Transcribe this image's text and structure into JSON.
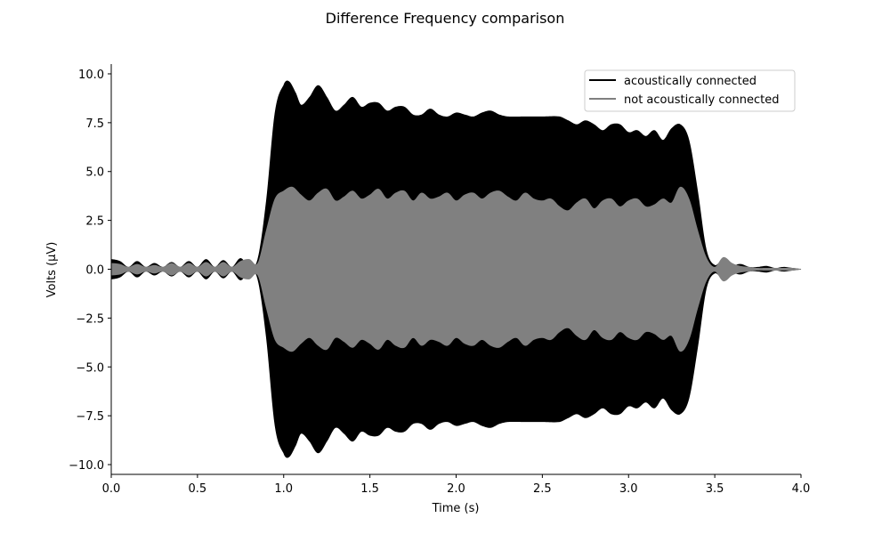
{
  "chart_data": {
    "type": "area",
    "title": "Difference Frequency comparison",
    "xlabel": "Time (s)",
    "ylabel": "Volts (μV)",
    "xlim": [
      0.0,
      4.0
    ],
    "ylim": [
      -10.5,
      10.5
    ],
    "xticks": [
      "0.0",
      "0.5",
      "1.0",
      "1.5",
      "2.0",
      "2.5",
      "3.0",
      "3.5",
      "4.0"
    ],
    "yticks": [
      "10.0",
      "7.5",
      "5.0",
      "2.5",
      "0.0",
      "−2.5",
      "−5.0",
      "−7.5",
      "−10.0"
    ],
    "ytick_values": [
      10.0,
      7.5,
      5.0,
      2.5,
      0.0,
      -2.5,
      -5.0,
      -7.5,
      -10.0
    ],
    "xtick_values": [
      0.0,
      0.5,
      1.0,
      1.5,
      2.0,
      2.5,
      3.0,
      3.5,
      4.0
    ],
    "grid": false,
    "legend_position": "top-right",
    "series": [
      {
        "name": "acoustically connected",
        "color": "#000000",
        "description_of_shape": "symmetric oscillation envelope",
        "x": [
          0.0,
          0.05,
          0.1,
          0.15,
          0.2,
          0.25,
          0.3,
          0.35,
          0.4,
          0.45,
          0.5,
          0.55,
          0.6,
          0.65,
          0.7,
          0.75,
          0.8,
          0.85,
          0.9,
          0.95,
          1.0,
          1.03,
          1.07,
          1.1,
          1.15,
          1.2,
          1.25,
          1.3,
          1.35,
          1.4,
          1.45,
          1.5,
          1.55,
          1.6,
          1.65,
          1.7,
          1.75,
          1.8,
          1.85,
          1.9,
          1.95,
          2.0,
          2.05,
          2.1,
          2.15,
          2.2,
          2.25,
          2.3,
          2.4,
          2.5,
          2.6,
          2.65,
          2.7,
          2.75,
          2.8,
          2.85,
          2.9,
          2.95,
          3.0,
          3.05,
          3.1,
          3.15,
          3.2,
          3.25,
          3.3,
          3.35,
          3.4,
          3.45,
          3.5,
          3.55,
          3.6,
          3.65,
          3.7,
          3.75,
          3.8,
          3.85,
          3.9,
          3.95,
          4.0
        ],
        "envelope": [
          0.5,
          0.4,
          0.1,
          0.4,
          0.1,
          0.3,
          0.1,
          0.35,
          0.1,
          0.4,
          0.1,
          0.5,
          0.1,
          0.45,
          0.1,
          0.55,
          0.1,
          0.5,
          3.5,
          8.0,
          9.4,
          9.6,
          9.0,
          8.4,
          8.8,
          9.4,
          8.8,
          8.1,
          8.4,
          8.8,
          8.3,
          8.5,
          8.5,
          8.1,
          8.3,
          8.3,
          7.9,
          7.9,
          8.2,
          7.9,
          7.8,
          8.0,
          7.9,
          7.8,
          8.0,
          8.1,
          7.9,
          7.8,
          7.8,
          7.8,
          7.8,
          7.6,
          7.4,
          7.6,
          7.4,
          7.1,
          7.4,
          7.4,
          7.0,
          7.1,
          6.8,
          7.1,
          6.6,
          7.2,
          7.4,
          6.6,
          4.0,
          1.0,
          0.2,
          0.5,
          0.2,
          0.25,
          0.1,
          0.1,
          0.15,
          0.05,
          0.1,
          0.05,
          0.0
        ]
      },
      {
        "name": "not acoustically connected",
        "color": "#808080",
        "description_of_shape": "symmetric oscillation envelope",
        "x": [
          0.0,
          0.05,
          0.1,
          0.15,
          0.2,
          0.25,
          0.3,
          0.35,
          0.4,
          0.45,
          0.5,
          0.55,
          0.6,
          0.65,
          0.7,
          0.75,
          0.8,
          0.85,
          0.9,
          0.95,
          1.0,
          1.05,
          1.1,
          1.15,
          1.2,
          1.25,
          1.3,
          1.35,
          1.4,
          1.45,
          1.5,
          1.55,
          1.6,
          1.65,
          1.7,
          1.75,
          1.8,
          1.85,
          1.9,
          1.95,
          2.0,
          2.05,
          2.1,
          2.15,
          2.2,
          2.25,
          2.3,
          2.35,
          2.4,
          2.45,
          2.5,
          2.55,
          2.6,
          2.65,
          2.7,
          2.75,
          2.8,
          2.85,
          2.9,
          2.95,
          3.0,
          3.05,
          3.1,
          3.15,
          3.2,
          3.25,
          3.3,
          3.35,
          3.4,
          3.45,
          3.5,
          3.55,
          3.6,
          3.65,
          3.7,
          3.75,
          3.8,
          3.85,
          3.9,
          3.95,
          4.0
        ],
        "envelope": [
          0.3,
          0.25,
          0.1,
          0.25,
          0.1,
          0.2,
          0.1,
          0.3,
          0.1,
          0.3,
          0.1,
          0.35,
          0.1,
          0.35,
          0.1,
          0.4,
          0.5,
          0.3,
          2.0,
          3.6,
          4.0,
          4.2,
          3.8,
          3.5,
          3.9,
          4.1,
          3.5,
          3.7,
          4.0,
          3.6,
          3.8,
          4.1,
          3.6,
          3.9,
          4.0,
          3.5,
          3.9,
          3.6,
          3.7,
          3.9,
          3.5,
          3.8,
          3.9,
          3.6,
          3.9,
          4.0,
          3.7,
          3.5,
          3.9,
          3.6,
          3.5,
          3.6,
          3.2,
          3.0,
          3.4,
          3.6,
          3.1,
          3.5,
          3.6,
          3.2,
          3.5,
          3.6,
          3.2,
          3.3,
          3.6,
          3.4,
          4.2,
          3.6,
          2.0,
          0.6,
          0.1,
          0.6,
          0.3,
          0.15,
          0.1,
          0.05,
          0.05,
          0.05,
          0.05,
          0.05,
          0.0
        ]
      }
    ]
  }
}
